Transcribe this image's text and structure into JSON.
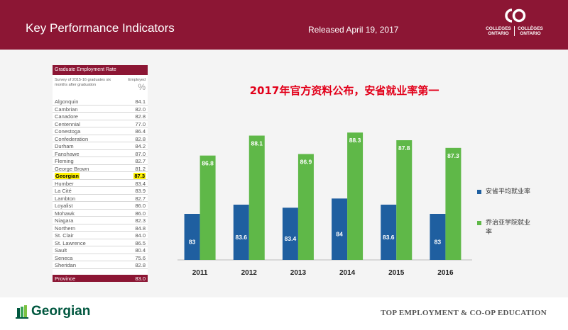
{
  "header": {
    "title": "Key Performance Indicators",
    "release": "Released April 19, 2017",
    "logo": {
      "icon": "co-logo-icon",
      "line1_en": "COLLEGES",
      "line2_en": "ONTARIO",
      "line1_fr": "COLLÈGES",
      "line2_fr": "ONTARIO"
    }
  },
  "table": {
    "title": "Graduate Employment Rate",
    "subtitle": "Survey of 2015-16 graduates six months after graduation",
    "col_label": "Employed",
    "col_unit": "%",
    "rows": [
      {
        "name": "Algonquin",
        "value": "84.1"
      },
      {
        "name": "Cambrian",
        "value": "82.0"
      },
      {
        "name": "Canadore",
        "value": "82.8"
      },
      {
        "name": "Centennial",
        "value": "77.0"
      },
      {
        "name": "Conestoga",
        "value": "86.4"
      },
      {
        "name": "Confederation",
        "value": "82.8"
      },
      {
        "name": "Durham",
        "value": "84.2"
      },
      {
        "name": "Fanshawe",
        "value": "87.0"
      },
      {
        "name": "Fleming",
        "value": "82.7"
      },
      {
        "name": "George Brown",
        "value": "81.2"
      },
      {
        "name": "Georgian",
        "value": "87.3",
        "highlight": true
      },
      {
        "name": "Humber",
        "value": "83.4"
      },
      {
        "name": "La Cité",
        "value": "83.9"
      },
      {
        "name": "Lambton",
        "value": "82.7"
      },
      {
        "name": "Loyalist",
        "value": "86.0"
      },
      {
        "name": "Mohawk",
        "value": "86.0"
      },
      {
        "name": "Niagara",
        "value": "82.3"
      },
      {
        "name": "Northern",
        "value": "84.8"
      },
      {
        "name": "St. Clair",
        "value": "84.0"
      },
      {
        "name": "St. Lawrence",
        "value": "86.5"
      },
      {
        "name": "Sault",
        "value": "80.4"
      },
      {
        "name": "Seneca",
        "value": "75.6"
      },
      {
        "name": "Sheridan",
        "value": "82.8"
      }
    ],
    "total": {
      "name": "Province",
      "value": "83.0"
    }
  },
  "chart_data": {
    "type": "bar",
    "title": "2017年官方资料公布，安省就业率第一",
    "categories": [
      "2011",
      "2012",
      "2013",
      "2014",
      "2015",
      "2016"
    ],
    "series": [
      {
        "name": "安省平均就业率",
        "values": [
          83,
          83.6,
          83.4,
          84,
          83.6,
          83
        ],
        "color": "#1f5fa0"
      },
      {
        "name": "乔治亚学院就业率",
        "values": [
          86.8,
          88.1,
          86.9,
          88.3,
          87.8,
          87.3
        ],
        "color": "#5fb848"
      }
    ],
    "xlabel": "",
    "ylabel": "",
    "ylim": [
      80,
      89
    ],
    "grid": false,
    "legend_position": "right",
    "data_labels": true
  },
  "footer": {
    "brand": "Georgian",
    "brand_icon": "georgian-logo-icon",
    "tagline": "TOP EMPLOYMENT & CO-OP EDUCATION"
  }
}
